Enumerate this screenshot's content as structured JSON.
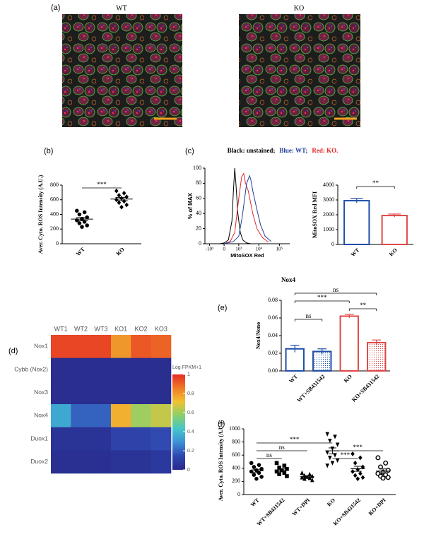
{
  "panel_labels": [
    "(a)",
    "(b)",
    "(c)",
    "(d)",
    "(e)",
    "(f)"
  ],
  "images": {
    "titles": [
      "WT",
      "KO"
    ]
  },
  "chart_data": [
    {
      "type": "strip",
      "ylabel": "Aver. Cyto. ROS Intensity (A.U.)",
      "categories": [
        "WT",
        "KO"
      ],
      "values": [
        [
          450,
          430,
          400,
          360,
          340,
          320,
          300,
          280,
          250,
          230
        ],
        [
          720,
          690,
          660,
          640,
          620,
          600,
          580,
          560,
          530,
          500
        ]
      ],
      "means": [
        336,
        610
      ],
      "sems": [
        22,
        22
      ],
      "markers": [
        "circle",
        "diamond"
      ],
      "color": "#000000",
      "ylim": [
        0,
        800
      ],
      "yticks": [
        0,
        200,
        400,
        600,
        800
      ],
      "comparisons": [
        {
          "groups": [
            "WT",
            "KO"
          ],
          "label": "***"
        }
      ]
    },
    {
      "type": "line",
      "ylabel": "% of MAX",
      "xlabel": "MitoSOX Red",
      "xscale": "biexponential",
      "title_parts": [
        {
          "text": "Black: unstained;",
          "color": "#000000"
        },
        {
          "text": "Blue: WT;",
          "color": "#1f3f9a"
        },
        {
          "text": "Red: KO.",
          "color": "#e02a2a"
        }
      ],
      "series": [
        {
          "color": "#000000",
          "x": [
            -200,
            0,
            200,
            400,
            500,
            600,
            700,
            900,
            1200,
            1600,
            2500,
            4000
          ],
          "values": [
            0,
            1,
            5,
            30,
            70,
            100,
            80,
            40,
            15,
            5,
            1,
            0
          ]
        },
        {
          "color": "#e02a2a",
          "x": [
            0,
            300,
            600,
            1000,
            1400,
            1800,
            2200,
            3000,
            5000,
            8000,
            15000,
            30000
          ],
          "values": [
            0,
            3,
            15,
            60,
            88,
            93,
            80,
            70,
            40,
            20,
            8,
            2
          ]
        },
        {
          "color": "#1f3f9a",
          "x": [
            0,
            500,
            1000,
            1500,
            2500,
            3500,
            4000,
            5000,
            8000,
            12000,
            20000,
            40000
          ],
          "values": [
            0,
            3,
            10,
            35,
            80,
            90,
            85,
            70,
            45,
            25,
            10,
            3
          ]
        }
      ],
      "xlim": [
        -1700,
        320000
      ],
      "xticks": [
        {
          "value": -1000,
          "label": "-10³"
        },
        0,
        {
          "value": 1000,
          "label": "10³"
        },
        {
          "value": 10000,
          "label": "10⁴"
        },
        {
          "value": 100000,
          "label": "10⁵"
        }
      ],
      "ylim": [
        0,
        100
      ],
      "yticks": [
        0,
        20,
        40,
        60,
        80,
        100
      ]
    },
    {
      "type": "bar",
      "ylabel": "MitoSOX Red MFI",
      "categories": [
        "WT",
        "KO"
      ],
      "values": [
        2950,
        1950
      ],
      "errors": [
        150,
        100
      ],
      "colors": [
        "#1f4fa8",
        "#e04848"
      ],
      "hatch": [
        false,
        false
      ],
      "ylim": [
        0,
        4000
      ],
      "yticks": [
        0,
        1000,
        2000,
        3000,
        4000
      ],
      "comparisons": [
        {
          "groups": [
            "WT",
            "KO"
          ],
          "label": "**"
        }
      ]
    },
    {
      "type": "heatmap",
      "rows": [
        "Nox1",
        "Cybb (Nox2)",
        "Nox3",
        "Nox4",
        "Duox1",
        "Duox2"
      ],
      "columns": [
        "WT1",
        "WT2",
        "WT3",
        "KO1",
        "KO2",
        "KO3"
      ],
      "values": [
        [
          0.95,
          0.95,
          0.95,
          0.8,
          0.92,
          0.9
        ],
        [
          0.02,
          0.02,
          0.02,
          0.02,
          0.02,
          0.02
        ],
        [
          0.02,
          0.02,
          0.02,
          0.02,
          0.02,
          0.02
        ],
        [
          0.35,
          0.2,
          0.2,
          0.75,
          0.6,
          0.65
        ],
        [
          0.05,
          0.05,
          0.05,
          0.12,
          0.12,
          0.15
        ],
        [
          0.03,
          0.03,
          0.03,
          0.05,
          0.05,
          0.07
        ]
      ],
      "colorscale": [
        "#282a8a",
        "#2f46b0",
        "#3b8ed6",
        "#44c7c9",
        "#8bd06a",
        "#f1c232",
        "#f07a26",
        "#e52a24"
      ],
      "clim": [
        0,
        1
      ],
      "cticks": [
        0,
        0.2,
        0.4,
        0.6,
        0.8,
        1
      ],
      "colorbar_label": "Log FPKM+1"
    },
    {
      "type": "bar",
      "title": "Nox4",
      "ylabel": "Nox4/Nono",
      "categories": [
        "WT",
        "WT+SB431542",
        "KO",
        "KO+SB431542"
      ],
      "values": [
        0.025,
        0.022,
        0.062,
        0.032
      ],
      "errors": [
        0.004,
        0.003,
        0.002,
        0.003
      ],
      "colors": [
        "#1f4fa8",
        "#1f4fa8",
        "#e04848",
        "#e04848"
      ],
      "hatch": [
        false,
        true,
        false,
        true
      ],
      "ylim": [
        0,
        0.08
      ],
      "yticks": [
        {
          "value": 0,
          "label": "0.00"
        },
        {
          "value": 0.02,
          "label": "0.02"
        },
        {
          "value": 0.04,
          "label": "0.04"
        },
        {
          "value": 0.06,
          "label": "0.06"
        },
        {
          "value": 0.08,
          "label": "0.08"
        }
      ],
      "comparisons": [
        {
          "groups": [
            "WT",
            "WT+SB431542"
          ],
          "label": "ns"
        },
        {
          "groups": [
            "WT",
            "KO"
          ],
          "label": "***"
        },
        {
          "groups": [
            "KO",
            "KO+SB431542"
          ],
          "label": "**"
        },
        {
          "groups": [
            "WT",
            "KO+SB431542"
          ],
          "label": "ns"
        }
      ]
    },
    {
      "type": "strip",
      "ylabel": "Aver. Cyto. ROS Intensity (A.U.)",
      "categories": [
        "WT",
        "WT+SB431542",
        "WT+DPI",
        "KO",
        "KO+SB431542",
        "KO+DPI"
      ],
      "values": [
        [
          480,
          450,
          420,
          390,
          370,
          350,
          330,
          300,
          270,
          240
        ],
        [
          480,
          440,
          410,
          390,
          370,
          350,
          330,
          310,
          280
        ],
        [
          330,
          310,
          290,
          280,
          270,
          260,
          250,
          240,
          220
        ],
        [
          920,
          880,
          820,
          760,
          700,
          640,
          600,
          560,
          520,
          480,
          440
        ],
        [
          620,
          560,
          480,
          420,
          380,
          350,
          320,
          290,
          260,
          240
        ],
        [
          560,
          480,
          420,
          370,
          340,
          320,
          300,
          280,
          260,
          250
        ]
      ],
      "means": [
        360,
        373,
        272,
        665,
        392,
        358
      ],
      "sems": [
        25,
        20,
        12,
        45,
        38,
        32
      ],
      "markers": [
        "circle",
        "square",
        "triangle",
        "triangle-down",
        "diamond",
        "circle-open"
      ],
      "color": "#000000",
      "ylim": [
        0,
        1000
      ],
      "yticks": [
        0,
        200,
        400,
        600,
        800,
        1000
      ],
      "comparisons": [
        {
          "groups": [
            "WT",
            "WT+SB431542"
          ],
          "label": "ns"
        },
        {
          "groups": [
            "WT",
            "WT+DPI"
          ],
          "label": "ns"
        },
        {
          "groups": [
            "WT",
            "KO"
          ],
          "label": "***"
        },
        {
          "groups": [
            "KO",
            "KO+SB431542"
          ],
          "label": "***"
        },
        {
          "groups": [
            "KO",
            "KO+DPI"
          ],
          "label": "***"
        }
      ]
    }
  ]
}
